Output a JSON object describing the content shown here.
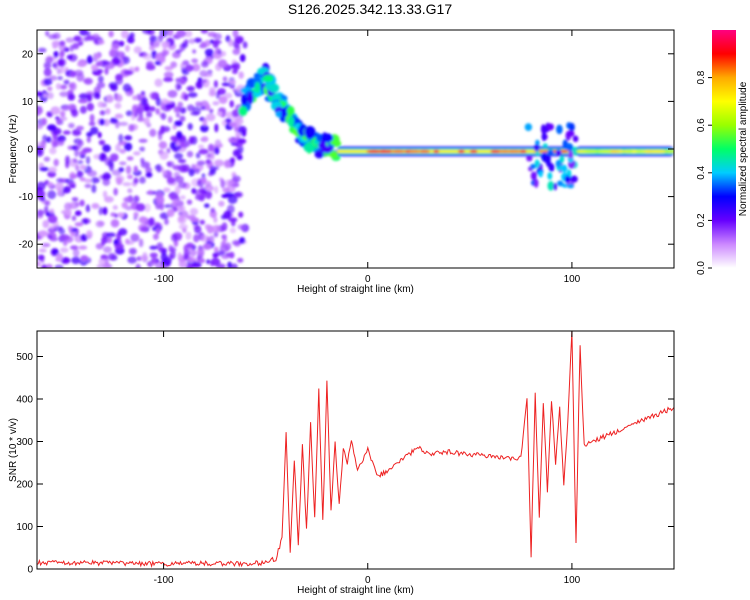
{
  "title": "S126.2025.342.13.33.G17",
  "chart_data": [
    {
      "type": "heatmap",
      "xlabel": "Height of straight line (km)",
      "ylabel": "Frequency (Hz)",
      "xlim": [
        -162,
        150
      ],
      "ylim": [
        -25,
        25
      ],
      "xticks": [
        -100,
        0,
        100
      ],
      "yticks": [
        -20,
        -10,
        0,
        10,
        20
      ],
      "colorbar": {
        "label": "Normalized spectral amplitude",
        "ticks": [
          0.0,
          0.2,
          0.4,
          0.6,
          0.8
        ],
        "range": [
          0,
          1
        ],
        "colors": [
          "#ffffff",
          "#cc88ff",
          "#6600ff",
          "#0000ff",
          "#00ccff",
          "#00ff66",
          "#99ff00",
          "#ffff00",
          "#ffaa00",
          "#ff0000",
          "#ff0080"
        ]
      },
      "features": [
        {
          "region": "noise",
          "x_range": [
            -162,
            -60
          ],
          "freq_range": [
            -25,
            25
          ],
          "amplitude": 0.15
        },
        {
          "region": "transition",
          "path_x": [
            -62,
            -55,
            -50,
            -45,
            -40,
            -35,
            -30,
            -25,
            -20,
            -15
          ],
          "path_freq": [
            9,
            13,
            15,
            10,
            8,
            4,
            2,
            1,
            0.5,
            0
          ],
          "amplitude": 0.4
        },
        {
          "region": "stable",
          "x_range": [
            -15,
            100
          ],
          "freq": -0.5,
          "amplitude": 0.95
        },
        {
          "region": "disturbance",
          "x_range": [
            78,
            102
          ],
          "freq_range": [
            -8,
            5
          ],
          "amplitude": 0.3
        },
        {
          "region": "stable",
          "x_range": [
            102,
            150
          ],
          "freq": -0.5,
          "amplitude": 0.75
        }
      ]
    },
    {
      "type": "line",
      "xlabel": "Height of straight line (km)",
      "ylabel": "SNR (10 * v/v)",
      "xlim": [
        -162,
        150
      ],
      "ylim": [
        0,
        560
      ],
      "xticks": [
        -100,
        0,
        100
      ],
      "yticks": [
        0,
        100,
        200,
        300,
        400,
        500
      ],
      "color": "#ee2222",
      "x": [
        -162,
        -140,
        -120,
        -100,
        -80,
        -60,
        -50,
        -45,
        -42,
        -40,
        -38,
        -36,
        -34,
        -32,
        -30,
        -28,
        -26,
        -24,
        -22,
        -20,
        -18,
        -16,
        -14,
        -12,
        -10,
        -8,
        -5,
        0,
        5,
        10,
        15,
        20,
        25,
        30,
        40,
        50,
        60,
        70,
        75,
        78,
        80,
        82,
        84,
        86,
        88,
        90,
        92,
        94,
        96,
        98,
        100,
        102,
        104,
        106,
        110,
        120,
        130,
        140,
        150
      ],
      "y": [
        15,
        14,
        13,
        12,
        13,
        12,
        15,
        25,
        70,
        320,
        40,
        260,
        60,
        290,
        90,
        340,
        120,
        420,
        110,
        440,
        140,
        300,
        150,
        280,
        250,
        300,
        230,
        280,
        220,
        230,
        250,
        270,
        285,
        270,
        275,
        270,
        265,
        260,
        260,
        400,
        30,
        410,
        120,
        390,
        180,
        400,
        250,
        380,
        200,
        350,
        560,
        60,
        530,
        290,
        300,
        320,
        340,
        360,
        380
      ]
    }
  ]
}
